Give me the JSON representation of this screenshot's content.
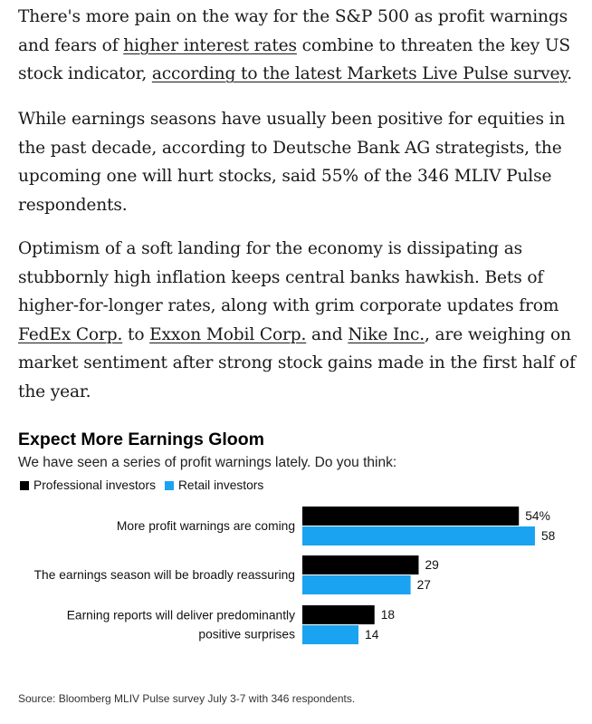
{
  "article": {
    "p1": {
      "pre": "There's more pain on the way for the S&P 500 as profit warnings and fears of ",
      "link": "higher interest rates",
      "mid": " combine to threaten the key US stock indicator, ",
      "link2": "according to the latest Markets Live Pulse survey",
      "post": "."
    },
    "p2": "While earnings seasons have usually been positive for equities in the past decade, according to Deutsche Bank AG strategists, the upcoming one will hurt stocks, said 55% of the 346 MLIV Pulse respondents.",
    "p3": {
      "pre": "Optimism of a soft landing for the economy is dissipating as stubbornly high inflation keeps central banks hawkish. Bets of higher-for-longer rates, along with grim corporate updates from ",
      "link1": "FedEx Corp.",
      "mid1": " to ",
      "link2": "Exxon Mobil Corp.",
      "mid2": " and ",
      "link3": "Nike Inc.",
      "post": ", are weighing on market sentiment after strong stock gains made in the first half of the year."
    }
  },
  "chart_data": {
    "type": "bar",
    "orientation": "horizontal",
    "title": "Expect More Earnings Gloom",
    "subtitle": "We have seen a series of profit warnings lately. Do you think:",
    "categories": [
      [
        "More profit warnings are coming"
      ],
      [
        "The earnings season will be broadly reassuring"
      ],
      [
        "Earning reports will deliver predominantly",
        "positive surprises"
      ]
    ],
    "series": [
      {
        "name": "Professional investors",
        "color": "#000000",
        "values": [
          54,
          29,
          18
        ],
        "labels": [
          "54%",
          "29",
          "18"
        ]
      },
      {
        "name": "Retail investors",
        "color": "#1aa3f0",
        "values": [
          58,
          27,
          14
        ],
        "labels": [
          "58",
          "27",
          "14"
        ]
      }
    ],
    "xlim": [
      0,
      58
    ],
    "grid": false,
    "legend_position": "top-left",
    "source": "Source: Bloomberg MLIV Pulse survey July 3-7 with 346 respondents."
  }
}
